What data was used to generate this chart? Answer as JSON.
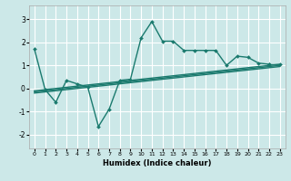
{
  "title": "",
  "xlabel": "Humidex (Indice chaleur)",
  "ylabel": "",
  "bg_color": "#cce8e8",
  "grid_color": "#ffffff",
  "line_color": "#1a7a6e",
  "xlim": [
    -0.5,
    23.5
  ],
  "ylim": [
    -2.6,
    3.6
  ],
  "xticks": [
    0,
    1,
    2,
    3,
    4,
    5,
    6,
    7,
    8,
    9,
    10,
    11,
    12,
    13,
    14,
    15,
    16,
    17,
    18,
    19,
    20,
    21,
    22,
    23
  ],
  "yticks": [
    -2,
    -1,
    0,
    1,
    2,
    3
  ],
  "series": [
    {
      "x": [
        0,
        1,
        2,
        3,
        4,
        5,
        6,
        7,
        8,
        9,
        10,
        11,
        12,
        13,
        14,
        15,
        16,
        17,
        18,
        19,
        20,
        21,
        22
      ],
      "y": [
        1.7,
        -0.05,
        -0.6,
        0.35,
        0.2,
        0.05,
        -1.65,
        -0.9,
        0.35,
        0.4,
        2.2,
        2.9,
        2.05,
        2.05,
        1.65,
        1.65,
        1.65,
        1.65,
        1.0,
        1.4,
        1.35,
        1.1,
        1.05
      ],
      "marker": "D",
      "markersize": 2.0,
      "linewidth": 1.0,
      "linestyle": "-"
    },
    {
      "x": [
        22,
        23
      ],
      "y": [
        1.05,
        1.05
      ],
      "marker": "D",
      "markersize": 2.0,
      "linewidth": 1.0,
      "linestyle": "-"
    },
    {
      "x": [
        0,
        23
      ],
      "y": [
        -0.1,
        1.05
      ],
      "marker": null,
      "markersize": 0,
      "linewidth": 1.0,
      "linestyle": "-"
    },
    {
      "x": [
        0,
        23
      ],
      "y": [
        -0.15,
        1.0
      ],
      "marker": null,
      "markersize": 0,
      "linewidth": 1.0,
      "linestyle": "-"
    },
    {
      "x": [
        0,
        23
      ],
      "y": [
        -0.2,
        0.95
      ],
      "marker": null,
      "markersize": 0,
      "linewidth": 1.0,
      "linestyle": "-"
    }
  ]
}
